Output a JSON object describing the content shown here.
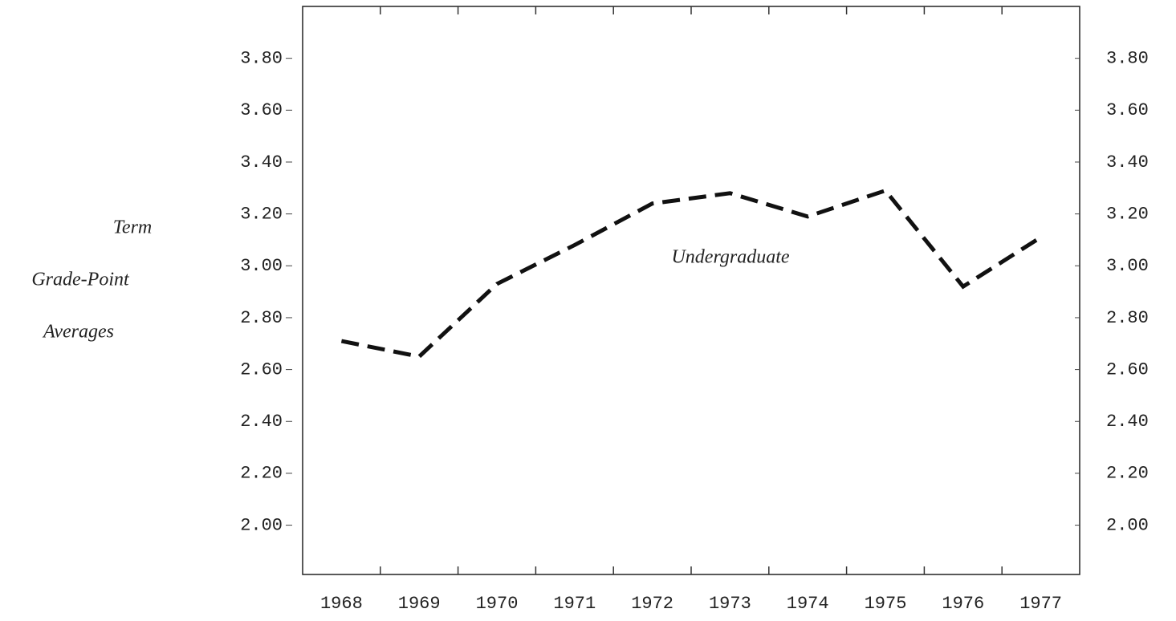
{
  "chart_data": {
    "type": "line",
    "ylabel_lines": [
      "Term",
      "Grade-Point",
      "Averages"
    ],
    "annotation": "Undergraduate",
    "categories": [
      "1968",
      "1969",
      "1970",
      "1971",
      "1972",
      "1973",
      "1974",
      "1975",
      "1976",
      "1977"
    ],
    "series": [
      {
        "name": "Undergraduate",
        "color": "#111111",
        "values": [
          2.71,
          2.65,
          2.93,
          3.08,
          3.24,
          3.28,
          3.19,
          3.29,
          2.92,
          3.11
        ]
      }
    ],
    "ylim": [
      1.81,
      4.0
    ],
    "yticks": [
      {
        "value": 2.0,
        "label": "2.00"
      },
      {
        "value": 2.2,
        "label": "2.20"
      },
      {
        "value": 2.4,
        "label": "2.40"
      },
      {
        "value": 2.6,
        "label": "2.60"
      },
      {
        "value": 2.8,
        "label": "2.80"
      },
      {
        "value": 3.0,
        "label": "3.00"
      },
      {
        "value": 3.2,
        "label": "3.20"
      },
      {
        "value": 3.4,
        "label": "3.40"
      },
      {
        "value": 3.6,
        "label": "3.60"
      },
      {
        "value": 3.8,
        "label": "3.80"
      }
    ],
    "y2lim": [
      1.81,
      4.0
    ],
    "y2ticks": [
      {
        "value": 2.0,
        "label": "2.00"
      },
      {
        "value": 2.2,
        "label": "2.20"
      },
      {
        "value": 2.4,
        "label": "2.40"
      },
      {
        "value": 2.6,
        "label": "2.60"
      },
      {
        "value": 2.8,
        "label": "2.80"
      },
      {
        "value": 3.0,
        "label": "3.00"
      },
      {
        "value": 3.2,
        "label": "3.20"
      },
      {
        "value": 3.4,
        "label": "3.40"
      },
      {
        "value": 3.6,
        "label": "3.60"
      },
      {
        "value": 3.8,
        "label": "3.80"
      }
    ],
    "dashed": true
  }
}
